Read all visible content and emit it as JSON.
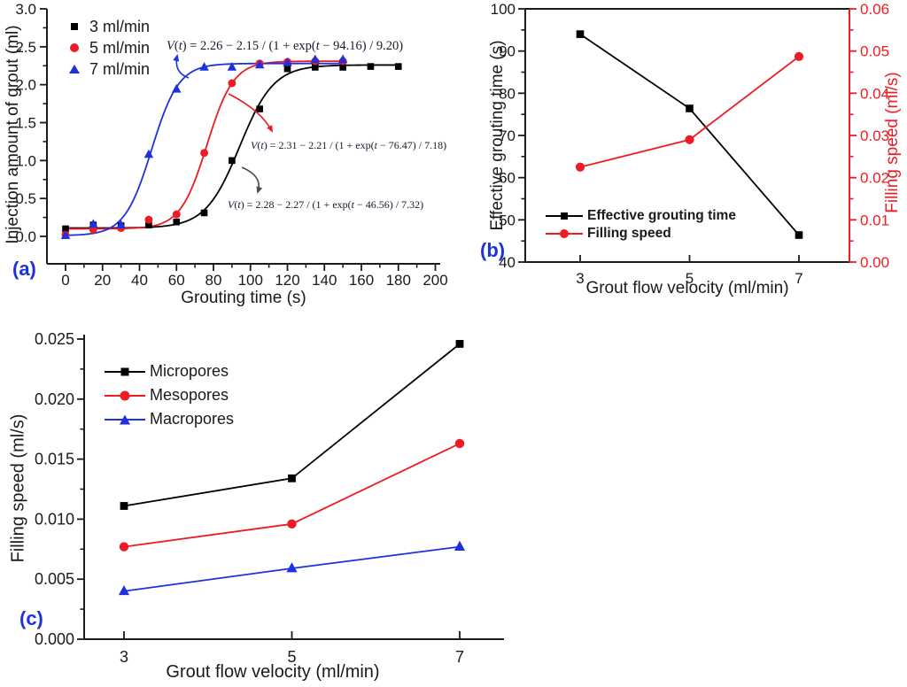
{
  "figure": {
    "background": "#ffffff",
    "panel_tag_color": "#1d32dd"
  },
  "colors": {
    "black": "#000000",
    "red": "#ed1c24",
    "blue": "#1d32dd",
    "axis": "#1a1a1a"
  },
  "chart_data": [
    {
      "panel_label": "(a)",
      "type": "line",
      "title": "",
      "xlabel": "Grouting time (s)",
      "ylabel": "Injection amount of grout (ml)",
      "xlim": [
        -10,
        203
      ],
      "ylim": [
        -0.36,
        3.0
      ],
      "x_ticks": [
        0,
        20,
        40,
        60,
        80,
        100,
        120,
        140,
        160,
        180,
        200
      ],
      "x_tick_labels": [
        "0",
        "20",
        "40",
        "60",
        "80",
        "100",
        "120",
        "140",
        "160",
        "180",
        "200"
      ],
      "x_minor_step": 10,
      "y_ticks": [
        0.0,
        0.5,
        1.0,
        1.5,
        2.0,
        2.5,
        3.0
      ],
      "y_tick_labels": [
        "0.0",
        "0.5",
        "1.0",
        "1.5",
        "2.0",
        "2.5",
        "3.0"
      ],
      "y_minor_step": 0.25,
      "legend_position": "upper-left",
      "series": [
        {
          "name": "3 ml/min",
          "marker": "square",
          "color": "#000000",
          "x": [
            0,
            15,
            30,
            45,
            60,
            75,
            90,
            105,
            120,
            135,
            150,
            165,
            180
          ],
          "y": [
            0.1,
            0.15,
            0.14,
            0.15,
            0.19,
            0.31,
            1.0,
            1.68,
            2.21,
            2.23,
            2.23,
            2.24,
            2.24
          ],
          "fit": {
            "plateau": 2.26,
            "drop": 2.15,
            "t0": 94.16,
            "dt": 9.2,
            "t_end": 181
          }
        },
        {
          "name": "5 ml/min",
          "marker": "circle",
          "color": "#ed1c24",
          "x": [
            0,
            15,
            30,
            45,
            60,
            75,
            90,
            105,
            120,
            135,
            150
          ],
          "y": [
            0.02,
            0.09,
            0.11,
            0.22,
            0.29,
            1.1,
            2.02,
            2.28,
            2.3,
            2.31,
            2.31
          ],
          "fit": {
            "plateau": 2.31,
            "drop": 2.21,
            "t0": 76.47,
            "dt": 7.18,
            "t_end": 152
          }
        },
        {
          "name": "7 ml/min",
          "marker": "triangle",
          "color": "#1d32dd",
          "x": [
            0,
            15,
            30,
            45,
            60,
            75,
            90,
            105,
            120,
            135,
            150
          ],
          "y": [
            0.01,
            0.16,
            0.15,
            1.08,
            1.94,
            2.23,
            2.23,
            2.26,
            2.29,
            2.33,
            2.33
          ],
          "fit": {
            "plateau": 2.28,
            "drop": 2.27,
            "t0": 46.56,
            "dt": 7.32,
            "t_end": 150
          }
        }
      ],
      "annotations": [
        {
          "text": "V(t) = 2.26 − 2.15 / (1 + exp(t − 94.16) / 9.20)",
          "arrow_color": "#1d32dd"
        },
        {
          "text": "V(t) = 2.31 − 2.21 / (1 + exp(t − 76.47) / 7.18)",
          "arrow_color": "#ed1c24"
        },
        {
          "text": "V(t) = 2.28 − 2.27 / (1 + exp(t − 46.56) / 7.32)",
          "arrow_color": "#4d4d4d"
        }
      ]
    },
    {
      "panel_label": "(b)",
      "type": "line",
      "title": "",
      "xlabel": "Grout flow velocity (ml/min)",
      "ylabel_left": "Effective grouting time (s)",
      "ylabel_right": "Filling speed (ml/s)",
      "x": [
        3,
        5,
        7
      ],
      "x_tick_labels": [
        "3",
        "5",
        "7"
      ],
      "xlim": [
        1.9,
        7.9
      ],
      "ylim_left": [
        40,
        100
      ],
      "y_ticks_left": [
        40,
        50,
        60,
        70,
        80,
        90,
        100
      ],
      "y_tick_labels_left": [
        "40",
        "50",
        "60",
        "70",
        "80",
        "90",
        "100"
      ],
      "y_minor_step_left": 5,
      "ylim_right": [
        0.0,
        0.06
      ],
      "y_ticks_right": [
        0.0,
        0.01,
        0.02,
        0.03,
        0.04,
        0.05,
        0.06
      ],
      "y_tick_labels_right": [
        "0.00",
        "0.01",
        "0.02",
        "0.03",
        "0.04",
        "0.05",
        "0.06"
      ],
      "y_minor_step_right": 0.005,
      "legend_position": "lower-left",
      "series": [
        {
          "name": "Effective grouting time",
          "axis": "left",
          "marker": "square",
          "color": "#000000",
          "values": [
            94.0,
            76.4,
            46.4
          ]
        },
        {
          "name": "Filling speed",
          "axis": "right",
          "marker": "circle",
          "color": "#ed1c24",
          "values": [
            0.0225,
            0.029,
            0.0487
          ]
        }
      ]
    },
    {
      "panel_label": "(c)",
      "type": "line",
      "title": "",
      "xlabel": "Grout  flow velocity (ml/min)",
      "ylabel": "Filling speed (ml/s)",
      "x": [
        3,
        5,
        7
      ],
      "x_tick_labels": [
        "3",
        "5",
        "7"
      ],
      "xlim": [
        2.05,
        8.05
      ],
      "ylim": [
        0.0,
        0.0252
      ],
      "y_ticks": [
        0.0,
        0.005,
        0.01,
        0.015,
        0.02,
        0.025
      ],
      "y_tick_labels": [
        "0.000",
        "0.005",
        "0.010",
        "0.015",
        "0.020",
        "0.025"
      ],
      "y_minor_step": 0.0025,
      "legend_position": "upper-left",
      "series": [
        {
          "name": "Micropores",
          "marker": "square",
          "color": "#000000",
          "values": [
            0.0111,
            0.0134,
            0.0246
          ]
        },
        {
          "name": "Mesopores",
          "marker": "circle",
          "color": "#ed1c24",
          "values": [
            0.0077,
            0.0096,
            0.0163
          ]
        },
        {
          "name": "Macropores",
          "marker": "triangle",
          "color": "#1d32dd",
          "values": [
            0.004,
            0.0059,
            0.0077
          ]
        }
      ]
    }
  ]
}
